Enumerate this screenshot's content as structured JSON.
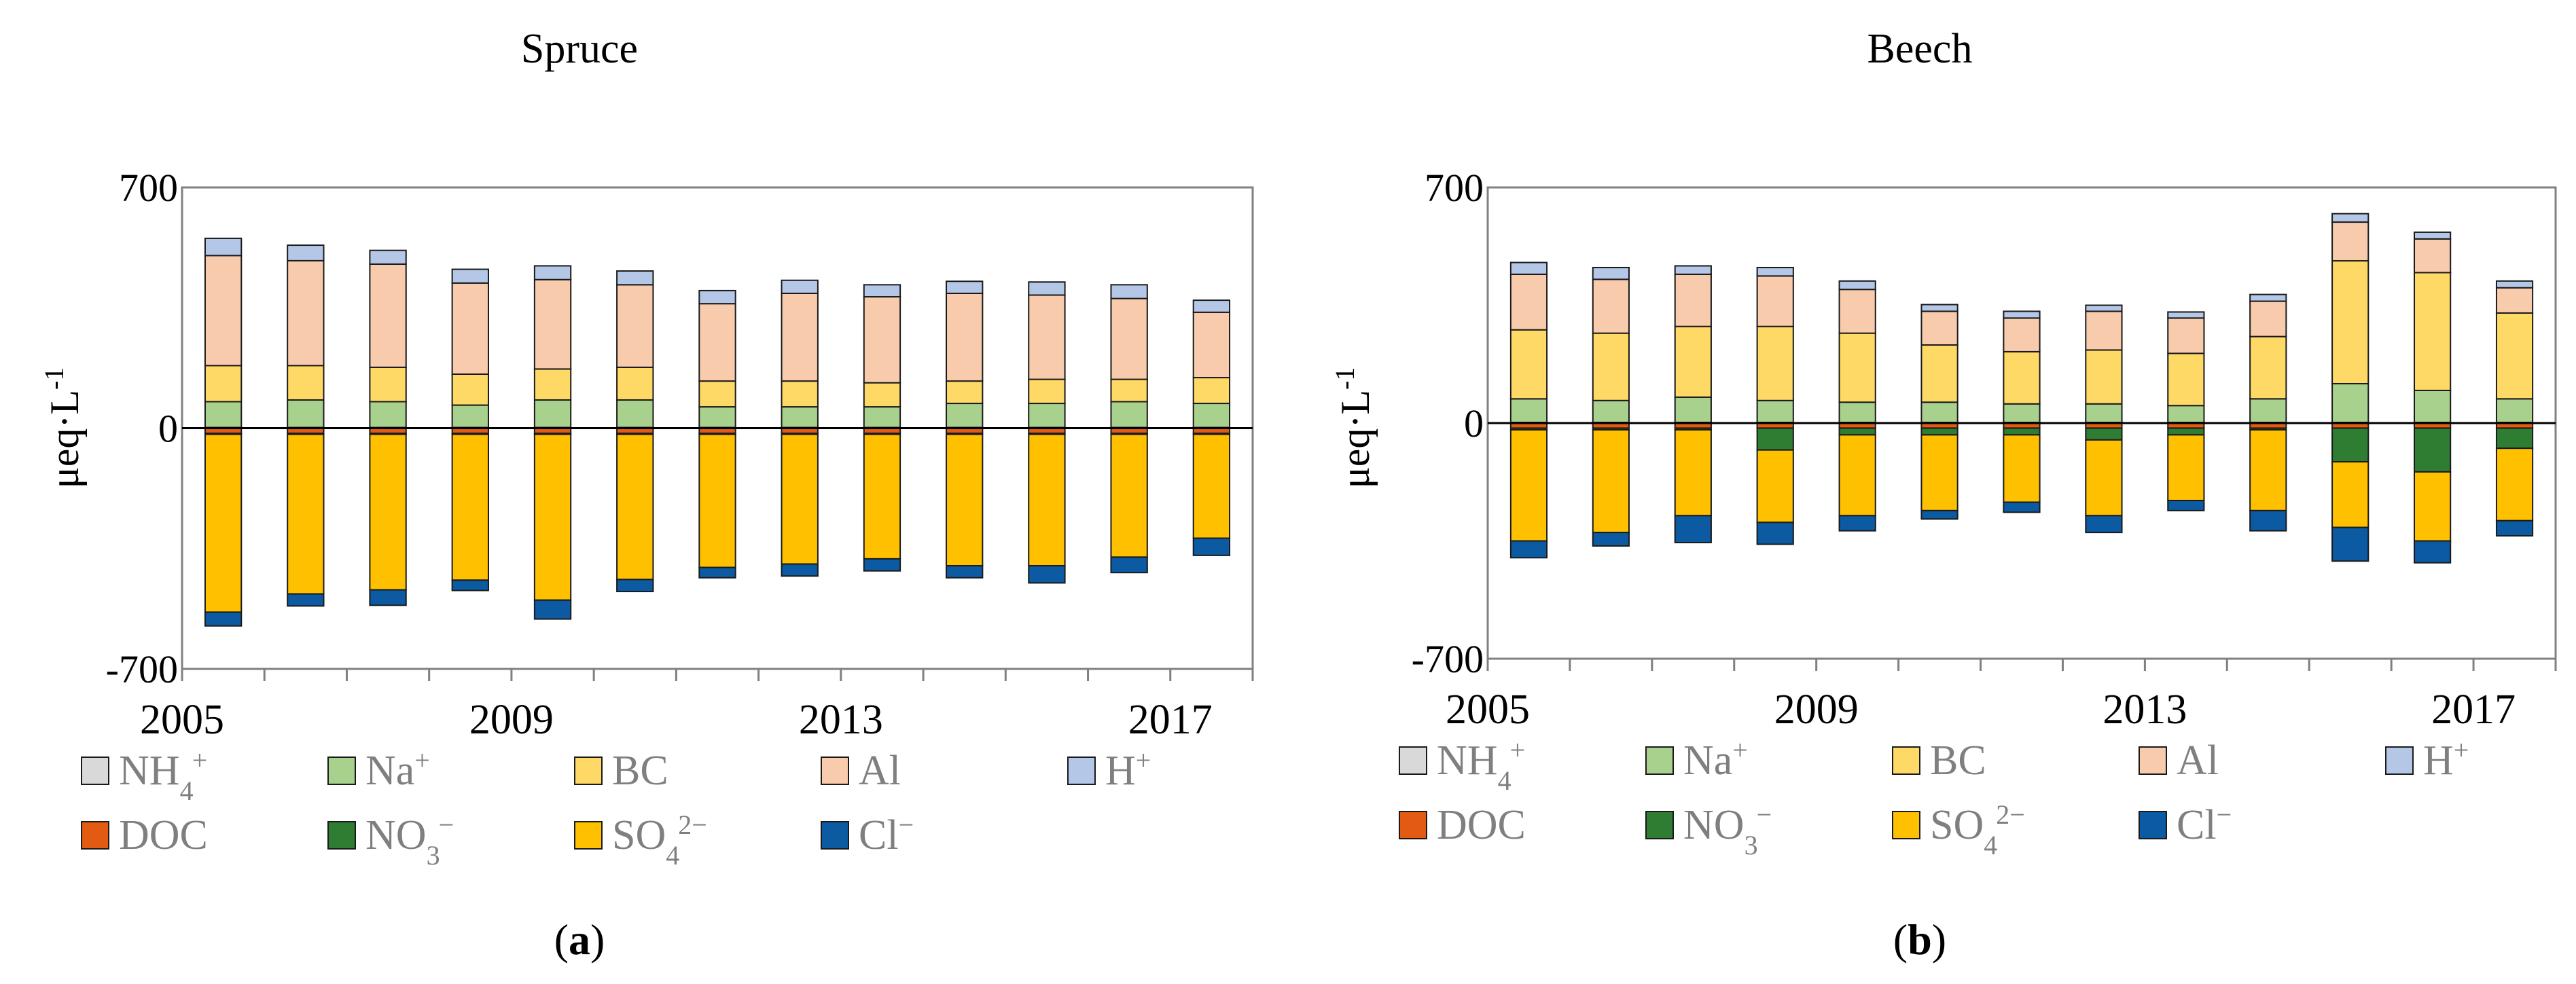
{
  "series_colors": {
    "NH4": "#d9d9d9",
    "Na": "#a9d18e",
    "BC": "#ffd966",
    "Al": "#f8cbad",
    "H": "#b4c7e7",
    "DOC": "#e35b12",
    "NO3": "#2e7d32",
    "SO4": "#ffc000",
    "Cl": "#0b5aa2"
  },
  "legend": [
    {
      "key": "NH4",
      "base": "NH",
      "sub": "4",
      "sup": "+"
    },
    {
      "key": "Na",
      "base": "Na",
      "sub": "",
      "sup": "+"
    },
    {
      "key": "BC",
      "base": "BC",
      "sub": "",
      "sup": ""
    },
    {
      "key": "Al",
      "base": "Al",
      "sub": "",
      "sup": ""
    },
    {
      "key": "H",
      "base": "H",
      "sub": "",
      "sup": "+"
    },
    {
      "key": "DOC",
      "base": "DOC",
      "sub": "",
      "sup": ""
    },
    {
      "key": "NO3",
      "base": "NO",
      "sub": "3",
      "sup": "−"
    },
    {
      "key": "SO4",
      "base": "SO",
      "sub": "4",
      "sup": "2−"
    },
    {
      "key": "Cl",
      "base": "Cl",
      "sub": "",
      "sup": "−"
    }
  ],
  "chart_data": [
    {
      "type": "bar",
      "title": "Spruce",
      "panel_label": "a",
      "ylabel": "μeq·L",
      "ylabel_sup": "-1",
      "ylim": [
        -700,
        700
      ],
      "yticks": [
        700,
        0,
        -700
      ],
      "xticks": [
        2005,
        2009,
        2013,
        2017
      ],
      "stacked": true,
      "categories": [
        2005,
        2006,
        2007,
        2008,
        2009,
        2010,
        2011,
        2012,
        2013,
        2014,
        2015,
        2016,
        2017
      ],
      "series": [
        {
          "key": "NH4",
          "name": "NH4+",
          "values": [
            2,
            2,
            2,
            2,
            2,
            2,
            2,
            2,
            2,
            2,
            2,
            2,
            2
          ]
        },
        {
          "key": "Na",
          "name": "Na+",
          "values": [
            75,
            80,
            75,
            65,
            80,
            80,
            60,
            60,
            60,
            70,
            70,
            75,
            70
          ]
        },
        {
          "key": "BC",
          "name": "BC",
          "values": [
            105,
            100,
            100,
            90,
            90,
            95,
            75,
            75,
            70,
            65,
            70,
            65,
            75
          ]
        },
        {
          "key": "Al",
          "name": "Al",
          "values": [
            320,
            305,
            300,
            265,
            260,
            240,
            225,
            255,
            250,
            255,
            245,
            235,
            190
          ]
        },
        {
          "key": "H",
          "name": "H+",
          "values": [
            50,
            45,
            40,
            40,
            40,
            40,
            38,
            38,
            35,
            35,
            38,
            40,
            35
          ]
        },
        {
          "key": "DOC",
          "name": "DOC",
          "values": [
            -15,
            -15,
            -15,
            -15,
            -15,
            -15,
            -15,
            -15,
            -15,
            -15,
            -15,
            -15,
            -15
          ]
        },
        {
          "key": "NO3",
          "name": "NO3−",
          "values": [
            -3,
            -3,
            -3,
            -3,
            -3,
            -3,
            -3,
            -3,
            -3,
            -3,
            -3,
            -3,
            -3
          ]
        },
        {
          "key": "SO4",
          "name": "SO42−",
          "values": [
            -517,
            -464,
            -452,
            -424,
            -482,
            -422,
            -387,
            -377,
            -362,
            -382,
            -382,
            -357,
            -302
          ]
        },
        {
          "key": "Cl",
          "name": "Cl−",
          "values": [
            -40,
            -35,
            -45,
            -30,
            -55,
            -35,
            -30,
            -35,
            -35,
            -35,
            -50,
            -45,
            -50
          ]
        }
      ]
    },
    {
      "type": "bar",
      "title": "Beech",
      "panel_label": "b",
      "ylabel": "μeq·L",
      "ylabel_sup": "-1",
      "ylim": [
        -700,
        700
      ],
      "yticks": [
        700,
        0,
        -700
      ],
      "xticks": [
        2005,
        2009,
        2013,
        2017
      ],
      "stacked": true,
      "categories": [
        2005,
        2006,
        2007,
        2008,
        2009,
        2010,
        2011,
        2012,
        2013,
        2014,
        2015,
        2016,
        2017
      ],
      "series": [
        {
          "key": "NH4",
          "name": "NH4+",
          "values": [
            2,
            2,
            2,
            2,
            2,
            2,
            2,
            2,
            2,
            2,
            2,
            2,
            2
          ]
        },
        {
          "key": "Na",
          "name": "Na+",
          "values": [
            70,
            65,
            75,
            65,
            60,
            60,
            55,
            55,
            50,
            70,
            115,
            95,
            70
          ]
        },
        {
          "key": "BC",
          "name": "BC",
          "values": [
            205,
            200,
            210,
            220,
            205,
            170,
            155,
            160,
            155,
            185,
            365,
            350,
            255
          ]
        },
        {
          "key": "Al",
          "name": "Al",
          "values": [
            165,
            160,
            155,
            150,
            130,
            100,
            100,
            115,
            105,
            105,
            115,
            100,
            75
          ]
        },
        {
          "key": "H",
          "name": "H+",
          "values": [
            35,
            35,
            25,
            25,
            25,
            20,
            20,
            18,
            18,
            20,
            25,
            20,
            20
          ]
        },
        {
          "key": "DOC",
          "name": "DOC",
          "values": [
            -15,
            -15,
            -15,
            -15,
            -15,
            -15,
            -15,
            -15,
            -15,
            -15,
            -15,
            -15,
            -15
          ]
        },
        {
          "key": "NO3",
          "name": "NO3−",
          "values": [
            -5,
            -5,
            -5,
            -65,
            -20,
            -20,
            -20,
            -35,
            -20,
            -5,
            -100,
            -130,
            -60
          ]
        },
        {
          "key": "SO4",
          "name": "SO42−",
          "values": [
            -330,
            -305,
            -255,
            -215,
            -240,
            -225,
            -200,
            -225,
            -195,
            -240,
            -195,
            -205,
            -215
          ]
        },
        {
          "key": "Cl",
          "name": "Cl−",
          "values": [
            -50,
            -40,
            -80,
            -65,
            -45,
            -25,
            -30,
            -50,
            -30,
            -60,
            -100,
            -65,
            -45
          ]
        }
      ]
    }
  ]
}
